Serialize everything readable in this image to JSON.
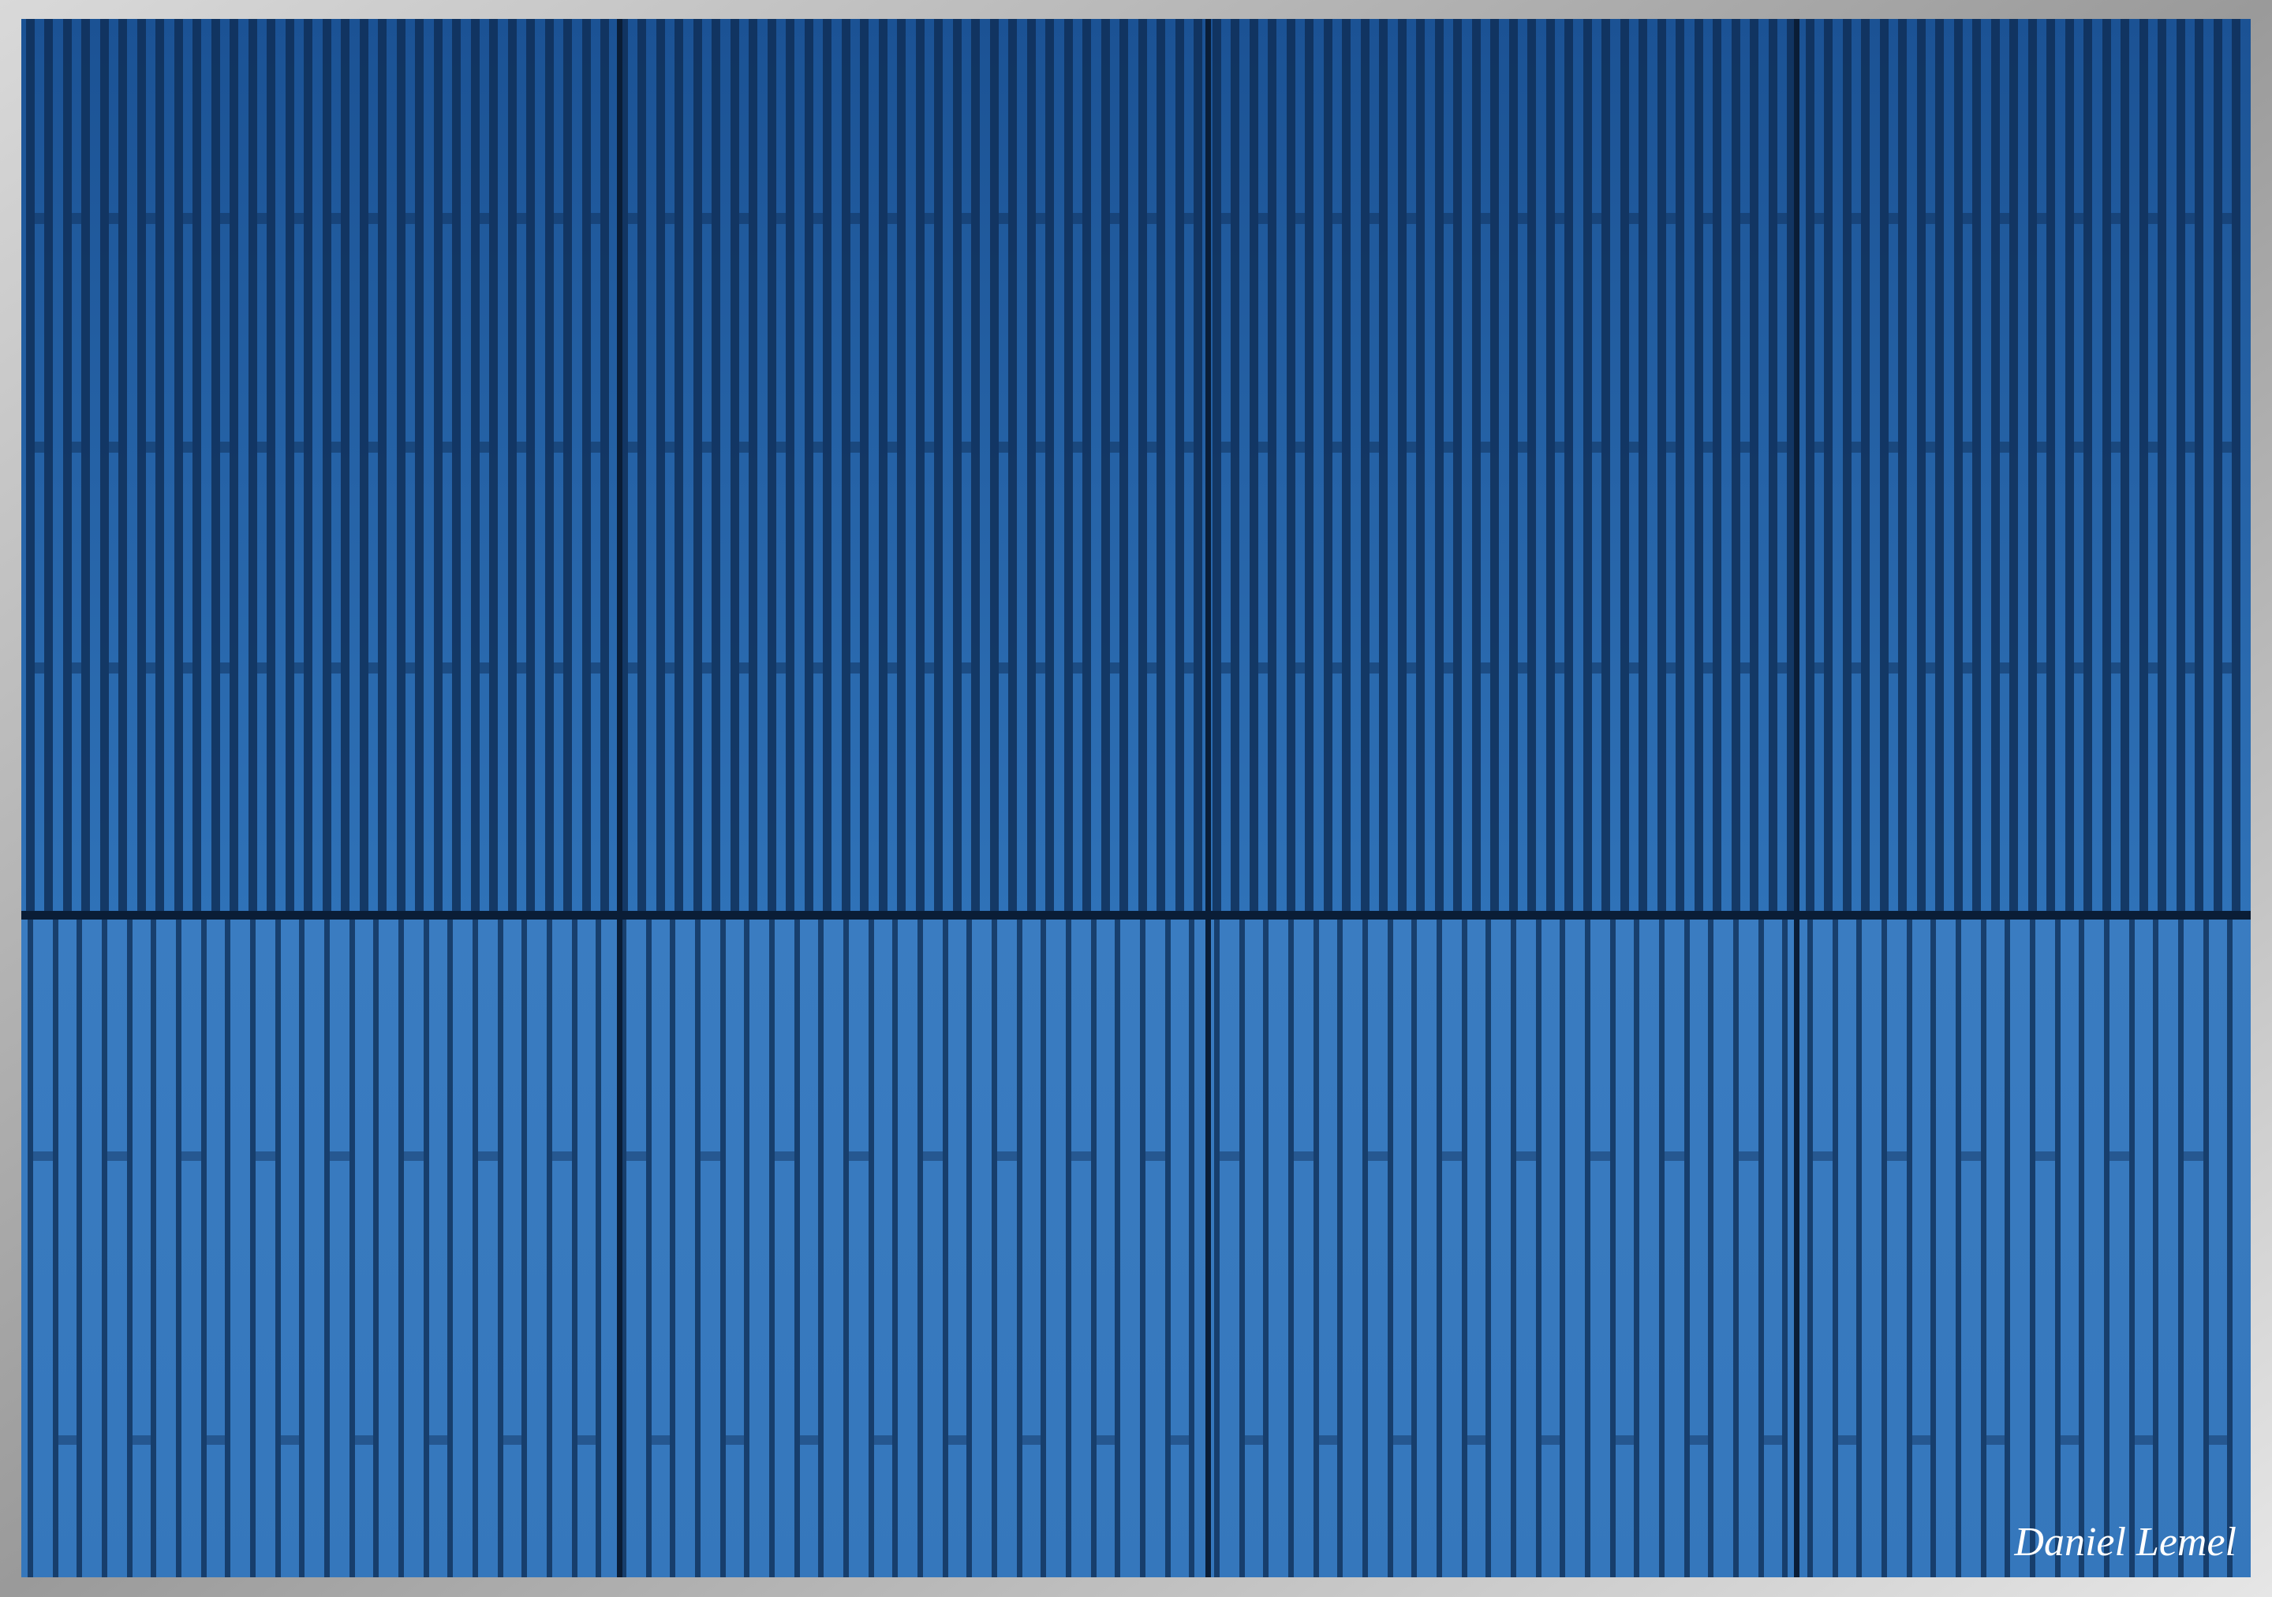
{
  "signature": "Daniel Lemel"
}
